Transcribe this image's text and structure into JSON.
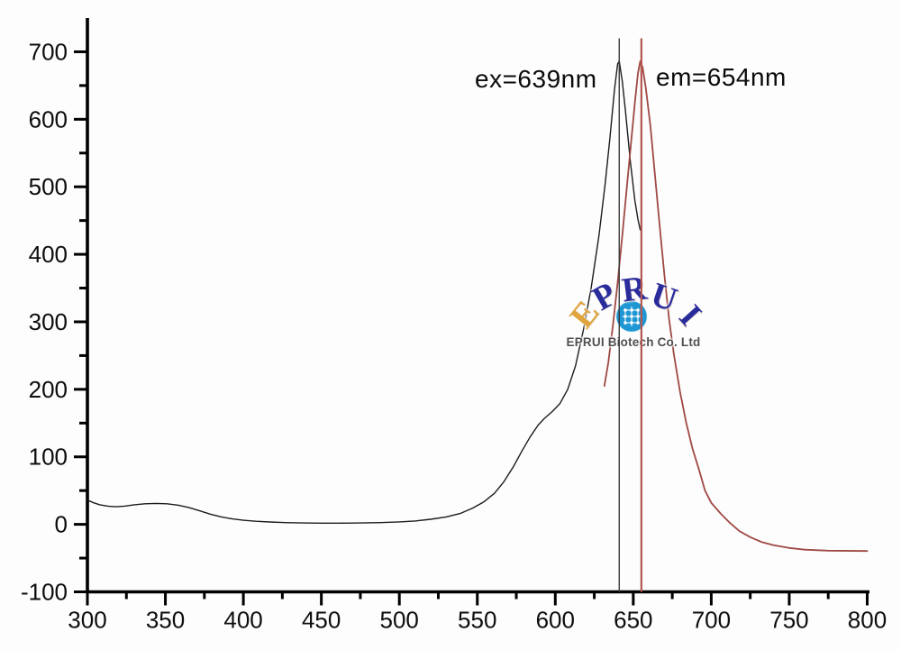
{
  "chart_data": {
    "type": "line",
    "title": "",
    "xlabel": "",
    "ylabel": "",
    "xlim": [
      300,
      800
    ],
    "ylim": [
      -100,
      750
    ],
    "x_ticks": [
      300,
      350,
      400,
      450,
      500,
      550,
      600,
      650,
      700,
      750,
      800
    ],
    "x_minor_ticks": [
      325,
      375,
      425,
      475,
      525,
      575,
      625,
      675,
      725,
      775
    ],
    "y_ticks": [
      -100,
      0,
      100,
      200,
      300,
      400,
      500,
      600,
      700
    ],
    "y_minor_ticks": [
      -50,
      50,
      150,
      250,
      350,
      450,
      550,
      650
    ],
    "grid": false,
    "legend": "none",
    "axis_color": "#000000",
    "tick_label_color": "#0d0d0d",
    "series": [
      {
        "name": "excitation-spectrum",
        "color": "#1c1c1c",
        "width": 1.4,
        "peak_nm": 639,
        "peak_value": 686,
        "points": [
          [
            300,
            36
          ],
          [
            304,
            32
          ],
          [
            308,
            29
          ],
          [
            313,
            27
          ],
          [
            318,
            26
          ],
          [
            324,
            27
          ],
          [
            330,
            29
          ],
          [
            337,
            30.5
          ],
          [
            344,
            31
          ],
          [
            351,
            30.5
          ],
          [
            358,
            28.5
          ],
          [
            365,
            25
          ],
          [
            372,
            20
          ],
          [
            379,
            15
          ],
          [
            386,
            11
          ],
          [
            393,
            8
          ],
          [
            400,
            6
          ],
          [
            408,
            4.5
          ],
          [
            417,
            3.5
          ],
          [
            427,
            2.5
          ],
          [
            438,
            2
          ],
          [
            450,
            1.8
          ],
          [
            462,
            1.8
          ],
          [
            475,
            2
          ],
          [
            488,
            2.6
          ],
          [
            500,
            3.6
          ],
          [
            510,
            5
          ],
          [
            520,
            7.5
          ],
          [
            530,
            11
          ],
          [
            539,
            16
          ],
          [
            547,
            24
          ],
          [
            554,
            33
          ],
          [
            561,
            46
          ],
          [
            567,
            63
          ],
          [
            573,
            85
          ],
          [
            579,
            110
          ],
          [
            584,
            130
          ],
          [
            589,
            147
          ],
          [
            593,
            157
          ],
          [
            598,
            167
          ],
          [
            603,
            179
          ],
          [
            608,
            200
          ],
          [
            613,
            235
          ],
          [
            618,
            288
          ],
          [
            623,
            350
          ],
          [
            628,
            428
          ],
          [
            632,
            505
          ],
          [
            635,
            572
          ],
          [
            638,
            645
          ],
          [
            640,
            682
          ],
          [
            641,
            686
          ],
          [
            643,
            656
          ],
          [
            645,
            612
          ],
          [
            648,
            540
          ],
          [
            651,
            480
          ],
          [
            653,
            452
          ],
          [
            654.5,
            436
          ]
        ]
      },
      {
        "name": "emission-spectrum",
        "color": "#9e4843",
        "width": 1.8,
        "peak_nm": 654,
        "peak_value": 686,
        "points": [
          [
            631.5,
            205
          ],
          [
            634,
            240
          ],
          [
            637,
            295
          ],
          [
            640,
            358
          ],
          [
            643,
            428
          ],
          [
            646,
            502
          ],
          [
            649,
            575
          ],
          [
            651,
            624
          ],
          [
            653,
            668
          ],
          [
            654.5,
            686
          ],
          [
            656,
            677
          ],
          [
            658,
            647
          ],
          [
            661,
            590
          ],
          [
            664,
            515
          ],
          [
            667,
            440
          ],
          [
            670,
            368
          ],
          [
            673,
            303
          ],
          [
            676,
            252
          ],
          [
            680,
            196
          ],
          [
            684,
            150
          ],
          [
            688,
            112
          ],
          [
            692,
            82
          ],
          [
            696,
            50
          ],
          [
            700,
            32
          ],
          [
            706,
            16
          ],
          [
            712,
            2
          ],
          [
            718,
            -10
          ],
          [
            725,
            -19
          ],
          [
            732,
            -26
          ],
          [
            740,
            -31
          ],
          [
            750,
            -35
          ],
          [
            760,
            -37.5
          ],
          [
            775,
            -39
          ],
          [
            800,
            -39.5
          ]
        ]
      }
    ],
    "markers": [
      {
        "name": "ex-peak-line",
        "x_nm": 641,
        "y_top": 720,
        "y_bottom": -100,
        "color": "#3a3a3a",
        "width": 1.4
      },
      {
        "name": "em-peak-line",
        "x_nm": 655.2,
        "y_top": 720,
        "y_bottom": -100,
        "color": "#b4574f",
        "width": 2.2
      }
    ],
    "annotations": [
      {
        "text": "ex=639nm"
      },
      {
        "text": "em=654nm"
      }
    ]
  },
  "watermark": {
    "letters": [
      {
        "ch": "E",
        "color": "#dfa43b"
      },
      {
        "ch": "P",
        "color": "#2b2c9b"
      },
      {
        "ch": "R",
        "color": "#2b2c9b"
      },
      {
        "ch": "U",
        "color": "#2b2c9b"
      },
      {
        "ch": "I",
        "color": "#2b2c9b"
      }
    ],
    "caption": "EPRUI Biotech Co. Ltd",
    "globe_color": "#1f97d4"
  }
}
